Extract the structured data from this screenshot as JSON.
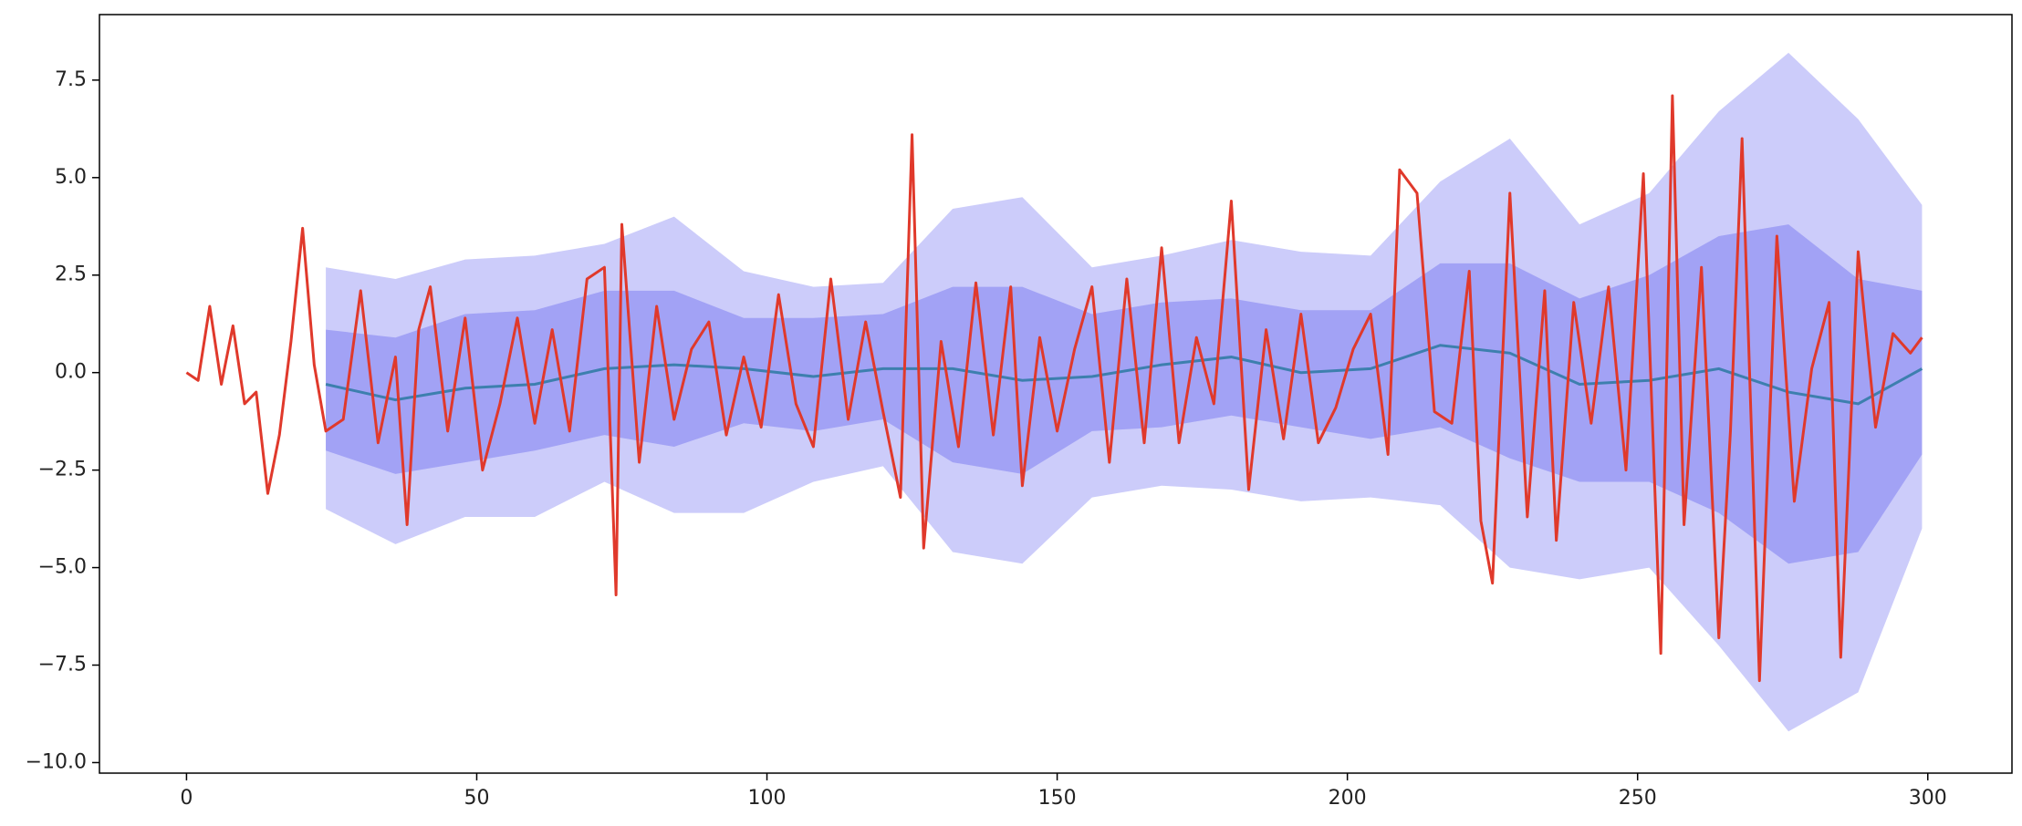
{
  "chart_data": {
    "type": "line",
    "x": [
      0,
      2,
      4,
      6,
      8,
      10,
      12,
      14,
      16,
      18,
      20,
      22,
      24,
      27,
      30,
      33,
      36,
      38,
      40,
      42,
      45,
      48,
      51,
      54,
      57,
      60,
      63,
      66,
      69,
      72,
      74,
      75,
      78,
      81,
      84,
      87,
      90,
      93,
      96,
      99,
      102,
      105,
      108,
      111,
      114,
      117,
      120,
      123,
      125,
      127,
      130,
      133,
      136,
      139,
      142,
      144,
      147,
      150,
      153,
      156,
      159,
      162,
      165,
      168,
      171,
      174,
      177,
      180,
      183,
      186,
      189,
      192,
      195,
      198,
      201,
      204,
      207,
      209,
      212,
      215,
      218,
      221,
      223,
      225,
      228,
      231,
      234,
      236,
      239,
      242,
      245,
      248,
      251,
      254,
      256,
      258,
      261,
      264,
      266,
      268,
      271,
      274,
      277,
      280,
      283,
      285,
      288,
      291,
      294,
      297,
      299
    ],
    "values": [
      0,
      -0.2,
      1.7,
      -0.3,
      1.2,
      -0.8,
      -0.5,
      -3.1,
      -1.6,
      0.8,
      3.7,
      0.2,
      -1.5,
      -1.2,
      2.1,
      -1.8,
      0.4,
      -3.9,
      1.1,
      2.2,
      -1.5,
      1.4,
      -2.5,
      -0.8,
      1.4,
      -1.3,
      1.1,
      -1.5,
      2.4,
      2.7,
      -5.7,
      3.8,
      -2.3,
      1.7,
      -1.2,
      0.6,
      1.3,
      -1.6,
      0.4,
      -1.4,
      2.0,
      -0.8,
      -1.9,
      2.4,
      -1.2,
      1.3,
      -1.0,
      -3.2,
      6.1,
      -4.5,
      0.8,
      -1.9,
      2.3,
      -1.6,
      2.2,
      -2.9,
      0.9,
      -1.5,
      0.6,
      2.2,
      -2.3,
      2.4,
      -1.8,
      3.2,
      -1.8,
      0.9,
      -0.8,
      4.4,
      -3.0,
      1.1,
      -1.7,
      1.5,
      -1.8,
      -0.9,
      0.6,
      1.5,
      -2.1,
      5.2,
      4.6,
      -1.0,
      -1.3,
      2.6,
      -3.8,
      -5.4,
      4.6,
      -3.7,
      2.1,
      -4.3,
      1.8,
      -1.3,
      2.2,
      -2.5,
      5.1,
      -7.2,
      7.1,
      -3.9,
      2.7,
      -6.8,
      -1.5,
      6.0,
      -7.9,
      3.5,
      -3.3,
      0.1,
      1.8,
      -7.3,
      3.1,
      -1.4,
      1.0,
      0.5,
      0.9
    ],
    "color": "#e0392b",
    "rolling": {
      "x": [
        24,
        36,
        48,
        60,
        72,
        84,
        96,
        108,
        120,
        132,
        144,
        156,
        168,
        180,
        192,
        204,
        216,
        228,
        240,
        252,
        264,
        276,
        288,
        299
      ],
      "mean": [
        -0.3,
        -0.7,
        -0.4,
        -0.3,
        0.1,
        0.2,
        0.1,
        -0.1,
        0.1,
        0.1,
        -0.2,
        -0.1,
        0.2,
        0.4,
        0.0,
        0.1,
        0.7,
        0.5,
        -0.3,
        -0.2,
        0.1,
        -0.5,
        -0.8,
        0.1
      ],
      "color": "#3d7fae",
      "bands": [
        {
          "color": "#ccccfa",
          "upper": [
            2.7,
            2.4,
            2.9,
            3.0,
            3.3,
            4.0,
            2.6,
            2.2,
            2.3,
            4.2,
            4.5,
            2.7,
            3.0,
            3.4,
            3.1,
            3.0,
            4.9,
            6.0,
            3.8,
            4.6,
            6.7,
            8.2,
            6.5,
            4.3
          ],
          "lower": [
            -3.5,
            -4.4,
            -3.7,
            -3.7,
            -2.8,
            -3.6,
            -3.6,
            -2.8,
            -2.4,
            -4.6,
            -4.9,
            -3.2,
            -2.9,
            -3.0,
            -3.3,
            -3.2,
            -3.4,
            -5.0,
            -5.3,
            -5.0,
            -7.0,
            -9.2,
            -8.2,
            -4.0
          ]
        },
        {
          "color": "#a2a2f5",
          "upper": [
            1.1,
            0.9,
            1.5,
            1.6,
            2.1,
            2.1,
            1.4,
            1.4,
            1.5,
            2.2,
            2.2,
            1.5,
            1.8,
            1.9,
            1.6,
            1.6,
            2.8,
            2.8,
            1.9,
            2.5,
            3.5,
            3.8,
            2.4,
            2.1
          ],
          "lower": [
            -2.0,
            -2.6,
            -2.3,
            -2.0,
            -1.6,
            -1.9,
            -1.3,
            -1.5,
            -1.2,
            -2.3,
            -2.6,
            -1.5,
            -1.4,
            -1.1,
            -1.4,
            -1.7,
            -1.4,
            -2.2,
            -2.8,
            -2.8,
            -3.6,
            -4.9,
            -4.6,
            -2.1
          ]
        }
      ]
    },
    "xlim": [
      -15,
      314.5
    ],
    "xticks": [
      0,
      50,
      100,
      150,
      200,
      250,
      300
    ],
    "ylim": [
      -10.27,
      9.18
    ],
    "yticks": [
      {
        "value": -10,
        "label": "−10.0"
      },
      {
        "value": -7.5,
        "label": "−7.5"
      },
      {
        "value": -5,
        "label": "−5.0"
      },
      {
        "value": -2.5,
        "label": "−2.5"
      },
      {
        "value": 0,
        "label": "0.0"
      },
      {
        "value": 2.5,
        "label": "2.5"
      },
      {
        "value": 5,
        "label": "5.0"
      },
      {
        "value": 7.5,
        "label": "7.5"
      }
    ]
  }
}
